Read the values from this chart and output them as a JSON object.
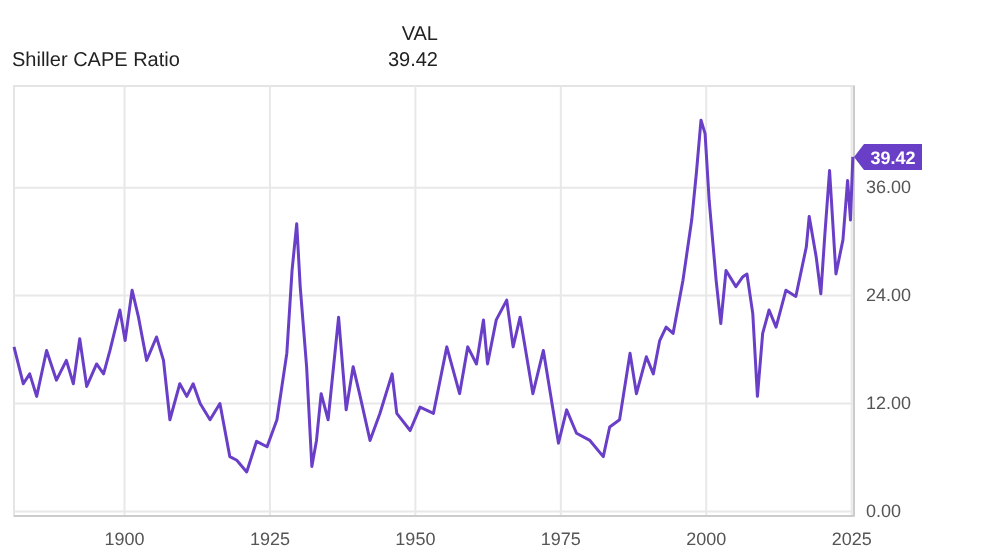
{
  "chart_data": {
    "type": "line",
    "title": "Shiller CAPE Ratio",
    "annotations": [
      "VAL",
      "39.42"
    ],
    "x": [
      1881,
      1882.6,
      1883.7,
      1884.9,
      1886.6,
      1888.3,
      1890,
      1891.2,
      1892.3,
      1893.5,
      1895.2,
      1896.4,
      1897.5,
      1899.2,
      1900.1,
      1901.3,
      1902.4,
      1903.8,
      1905.5,
      1906.7,
      1907.8,
      1909.5,
      1910.7,
      1911.8,
      1913,
      1914.7,
      1916.4,
      1918.1,
      1919.3,
      1921,
      1922.7,
      1924.5,
      1926.2,
      1927.9,
      1928.8,
      1929.6,
      1930.2,
      1931.3,
      1932.2,
      1933,
      1933.8,
      1935,
      1936.8,
      1938.1,
      1939.3,
      1940.4,
      1942.2,
      1943.9,
      1946,
      1946.8,
      1949.1,
      1950.8,
      1953.1,
      1955.4,
      1957.6,
      1959,
      1960.5,
      1961.7,
      1962.4,
      1963.9,
      1965.7,
      1966.8,
      1968,
      1970.2,
      1972,
      1974.6,
      1976,
      1977.7,
      1980,
      1982.3,
      1983.4,
      1985.1,
      1986.9,
      1988,
      1989.7,
      1990.9,
      1992,
      1993.1,
      1994.3,
      1996,
      1997.5,
      1998.3,
      1999.1,
      1999.8,
      2000.5,
      2001.7,
      2002.5,
      2003.4,
      2005.1,
      2006.3,
      2007,
      2008,
      2008.8,
      2009.7,
      2010.8,
      2012,
      2013.7,
      2015.4,
      2017.2,
      2017.7,
      2018.9,
      2019.7,
      2020.4,
      2021.2,
      2022.3,
      2023.5,
      2024.3,
      2024.8,
      2025.2
    ],
    "series": [
      {
        "color": "#6a3fc8",
        "values": [
          18.3,
          14.2,
          15.3,
          12.8,
          17.9,
          14.6,
          16.8,
          14.2,
          19.2,
          13.9,
          16.4,
          15.3,
          17.9,
          22.4,
          19,
          24.6,
          21.6,
          16.8,
          19.4,
          16.8,
          10.2,
          14.2,
          12.8,
          14.2,
          12,
          10.2,
          12,
          6.1,
          5.7,
          4.4,
          7.8,
          7.2,
          10.2,
          17.6,
          26.8,
          32,
          25,
          16.1,
          5,
          7.9,
          13.1,
          10.2,
          21.6,
          11.3,
          16.1,
          13.1,
          7.9,
          10.9,
          15.3,
          10.9,
          9,
          11.6,
          10.9,
          18.3,
          13.1,
          18.3,
          16.4,
          21.3,
          16.4,
          21.3,
          23.5,
          18.3,
          21.6,
          13.1,
          17.9,
          7.6,
          11.3,
          8.7,
          7.9,
          6.1,
          9.4,
          10.2,
          17.6,
          13.1,
          17.2,
          15.3,
          19,
          20.5,
          19.8,
          25.7,
          32.4,
          37.6,
          43.5,
          42,
          34.6,
          25.7,
          20.9,
          26.8,
          25,
          26.1,
          26.4,
          22,
          12.8,
          19.8,
          22.4,
          20.5,
          24.6,
          23.9,
          29.4,
          32.8,
          28.3,
          24.2,
          30.9,
          37.9,
          26.4,
          30.2,
          36.8,
          32.4,
          39.42
        ],
        "value_labels": [
          null,
          null,
          null,
          null,
          null,
          null,
          null,
          null,
          null,
          null,
          null,
          null,
          null,
          null,
          null,
          null,
          null,
          null,
          null,
          null,
          null,
          null,
          null,
          null,
          null,
          null,
          null,
          null,
          null,
          null,
          null,
          null,
          null,
          null,
          null,
          null,
          null,
          null,
          null,
          null,
          null,
          null,
          null,
          null,
          null,
          null,
          null,
          null,
          null,
          null,
          null,
          null,
          null,
          null,
          null,
          null,
          null,
          null,
          null,
          null,
          null,
          null,
          null,
          null,
          null,
          null,
          null,
          null,
          null,
          null,
          null,
          null,
          null,
          null,
          null,
          null,
          null,
          null,
          null,
          null,
          null,
          null,
          null,
          null,
          null,
          null,
          null,
          null,
          null,
          null,
          null,
          null,
          null,
          null,
          null,
          null,
          null,
          null,
          null,
          null,
          null,
          null,
          null,
          null,
          null,
          null,
          null,
          null,
          "39.42"
        ]
      }
    ],
    "xlim": [
      1881,
      2025.4
    ],
    "xticks": [
      1900,
      1925,
      1950,
      1975,
      2000,
      2025
    ],
    "ylim": [
      -0.5,
      47.3
    ],
    "yticks": [
      {
        "value": 0,
        "label": "0.00"
      },
      {
        "value": 12,
        "label": "12.00"
      },
      {
        "value": 24,
        "label": "24.00"
      },
      {
        "value": 36,
        "label": "36.00"
      }
    ],
    "grid": true,
    "marker": "none",
    "line_style": "solid"
  }
}
